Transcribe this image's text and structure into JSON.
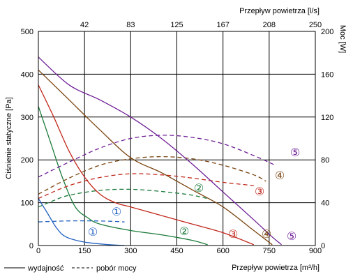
{
  "chart_data": {
    "type": "line",
    "xlabel": "Przepływ powietrza [m³/h]",
    "x2label": "Przepływ powietrza [l/s]",
    "ylabel": "Ciśnienie statyczne [Pa]",
    "y2label": "Moc [W]",
    "xlim": [
      0,
      900
    ],
    "ylim": [
      0,
      500
    ],
    "y2lim": [
      0,
      200
    ],
    "xticks": [
      "0",
      "150",
      "300",
      "450",
      "600",
      "750",
      "900"
    ],
    "x2ticks": [
      "42",
      "83",
      "125",
      "167",
      "208",
      "250"
    ],
    "yticks": [
      "0",
      "100",
      "200",
      "300",
      "400",
      "500"
    ],
    "y2ticks": [
      "0",
      "40",
      "80",
      "120",
      "160",
      "200"
    ],
    "grid": true,
    "legend": [
      {
        "style": "solid",
        "label": "wydajność"
      },
      {
        "style": "dashed",
        "label": "pobór mocy"
      }
    ],
    "series": [
      {
        "marker": "①",
        "color": "#1f5fbf",
        "pressure": [
          [
            0,
            110
          ],
          [
            30,
            75
          ],
          [
            60,
            40
          ],
          [
            90,
            20
          ],
          [
            150,
            8
          ],
          [
            230,
            2
          ],
          [
            280,
            0
          ]
        ],
        "power": [
          [
            0,
            22
          ],
          [
            40,
            22.5
          ],
          [
            100,
            23
          ],
          [
            180,
            23
          ],
          [
            250,
            22.5
          ],
          [
            280,
            22
          ]
        ]
      },
      {
        "marker": "②",
        "color": "#1a7a3a",
        "pressure": [
          [
            0,
            325
          ],
          [
            40,
            240
          ],
          [
            80,
            155
          ],
          [
            120,
            90
          ],
          [
            160,
            65
          ],
          [
            200,
            50
          ],
          [
            300,
            35
          ],
          [
            400,
            25
          ],
          [
            500,
            12
          ],
          [
            550,
            2
          ]
        ],
        "power": [
          [
            0,
            36
          ],
          [
            50,
            42
          ],
          [
            100,
            47
          ],
          [
            200,
            51.5
          ],
          [
            300,
            52.5
          ],
          [
            400,
            50.5
          ],
          [
            500,
            47
          ],
          [
            560,
            43
          ]
        ]
      },
      {
        "marker": "③",
        "color": "#c0281c",
        "pressure": [
          [
            0,
            375
          ],
          [
            50,
            300
          ],
          [
            100,
            220
          ],
          [
            150,
            160
          ],
          [
            200,
            120
          ],
          [
            250,
            100
          ],
          [
            300,
            90
          ],
          [
            400,
            70
          ],
          [
            500,
            50
          ],
          [
            600,
            30
          ],
          [
            700,
            2
          ]
        ],
        "power": [
          [
            0,
            44
          ],
          [
            100,
            56
          ],
          [
            200,
            63.5
          ],
          [
            300,
            67
          ],
          [
            400,
            66
          ],
          [
            500,
            63
          ],
          [
            600,
            59
          ],
          [
            700,
            56
          ]
        ]
      },
      {
        "marker": "④",
        "color": "#7a4410",
        "pressure": [
          [
            0,
            410
          ],
          [
            100,
            340
          ],
          [
            200,
            270
          ],
          [
            300,
            205
          ],
          [
            400,
            170
          ],
          [
            500,
            130
          ],
          [
            600,
            90
          ],
          [
            700,
            35
          ],
          [
            760,
            2
          ]
        ],
        "power": [
          [
            0,
            48
          ],
          [
            100,
            63
          ],
          [
            200,
            75
          ],
          [
            300,
            81
          ],
          [
            400,
            83
          ],
          [
            500,
            81
          ],
          [
            600,
            75
          ],
          [
            700,
            66
          ],
          [
            740,
            60
          ]
        ]
      },
      {
        "marker": "⑤",
        "color": "#6e1e96",
        "pressure": [
          [
            0,
            440
          ],
          [
            100,
            375
          ],
          [
            200,
            340
          ],
          [
            300,
            300
          ],
          [
            400,
            250
          ],
          [
            500,
            190
          ],
          [
            600,
            125
          ],
          [
            700,
            60
          ],
          [
            760,
            20
          ],
          [
            790,
            2
          ]
        ],
        "power": [
          [
            0,
            64
          ],
          [
            100,
            78
          ],
          [
            200,
            91
          ],
          [
            300,
            100
          ],
          [
            400,
            103
          ],
          [
            500,
            101
          ],
          [
            600,
            95
          ],
          [
            700,
            84
          ],
          [
            770,
            75
          ]
        ]
      }
    ]
  }
}
